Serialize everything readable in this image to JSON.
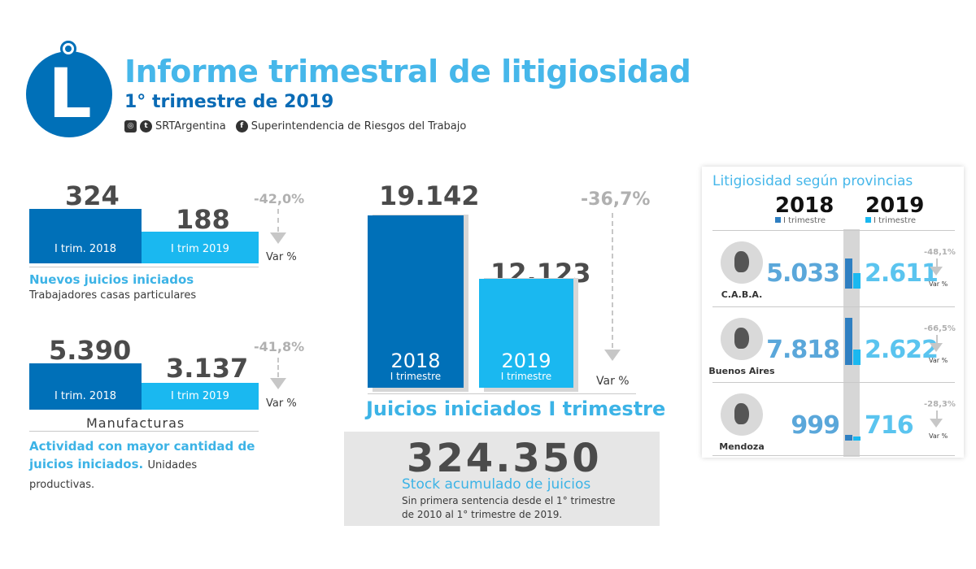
{
  "header": {
    "title": "Informe trimestral de litigiosidad",
    "subtitle": "1° trimestre de 2019",
    "social_handle": "SRTArgentina",
    "org_name": "Superintendencia de Riesgos del Trabajo",
    "logo_letter": "L",
    "icons": [
      "instagram-icon",
      "twitter-icon",
      "facebook-icon"
    ]
  },
  "colors": {
    "dark_blue": "#0070b8",
    "light_blue": "#1ab8f0",
    "caption_blue": "#3cb3e6",
    "grey_var": "#b0b0b0"
  },
  "chart_data": [
    {
      "type": "bar",
      "categories": [
        "I trim. 2018",
        "I trim 2019"
      ],
      "values": [
        324,
        188
      ],
      "value_labels": [
        "324",
        "188"
      ],
      "variation": "-42,0%",
      "variation_label": "Var %",
      "caption_title": "Nuevos juicios iniciados",
      "caption_text": "Trabajadores casas particulares"
    },
    {
      "type": "bar",
      "categories": [
        "I trim. 2018",
        "I trim 2019"
      ],
      "values": [
        5390,
        3137
      ],
      "value_labels": [
        "5.390",
        "3.137"
      ],
      "variation": "-41,8%",
      "variation_label": "Var %",
      "sector": "Manufacturas",
      "caption_title": "Actividad con mayor cantidad de juicios iniciados.",
      "caption_text": "Unidades productivas."
    },
    {
      "type": "bar",
      "categories": [
        "2018",
        "2019"
      ],
      "category_sub": [
        "I trimestre",
        "I trimestre"
      ],
      "values": [
        19142,
        12123
      ],
      "value_labels": [
        "19.142",
        "12.123"
      ],
      "variation": "-36,7%",
      "variation_label": "Var %",
      "title": "Juicios iniciados I trimestre"
    },
    {
      "type": "bar",
      "title": "Litigiosidad según provincias",
      "years": [
        "2018",
        "2019"
      ],
      "year_sub": [
        "I trimestre",
        "I trimestre"
      ],
      "var_label": "Var %",
      "provinces": [
        {
          "name": "C.A.B.A.",
          "v2018": 5033,
          "v2019": 2611,
          "l2018": "5.033",
          "l2019": "2.611",
          "variation": "-48,1%"
        },
        {
          "name": "Buenos Aires",
          "v2018": 7818,
          "v2019": 2622,
          "l2018": "7.818",
          "l2019": "2.622",
          "variation": "-66,5%"
        },
        {
          "name": "Mendoza",
          "v2018": 999,
          "v2019": 716,
          "l2018": "999",
          "l2019": "716",
          "variation": "-28,3%"
        }
      ]
    }
  ],
  "stock": {
    "value": "324.350",
    "title": "Stock acumulado de juicios",
    "note_line1": "Sin primera sentencia desde el 1° trimestre",
    "note_line2": "de 2010 al 1° trimestre de 2019."
  }
}
